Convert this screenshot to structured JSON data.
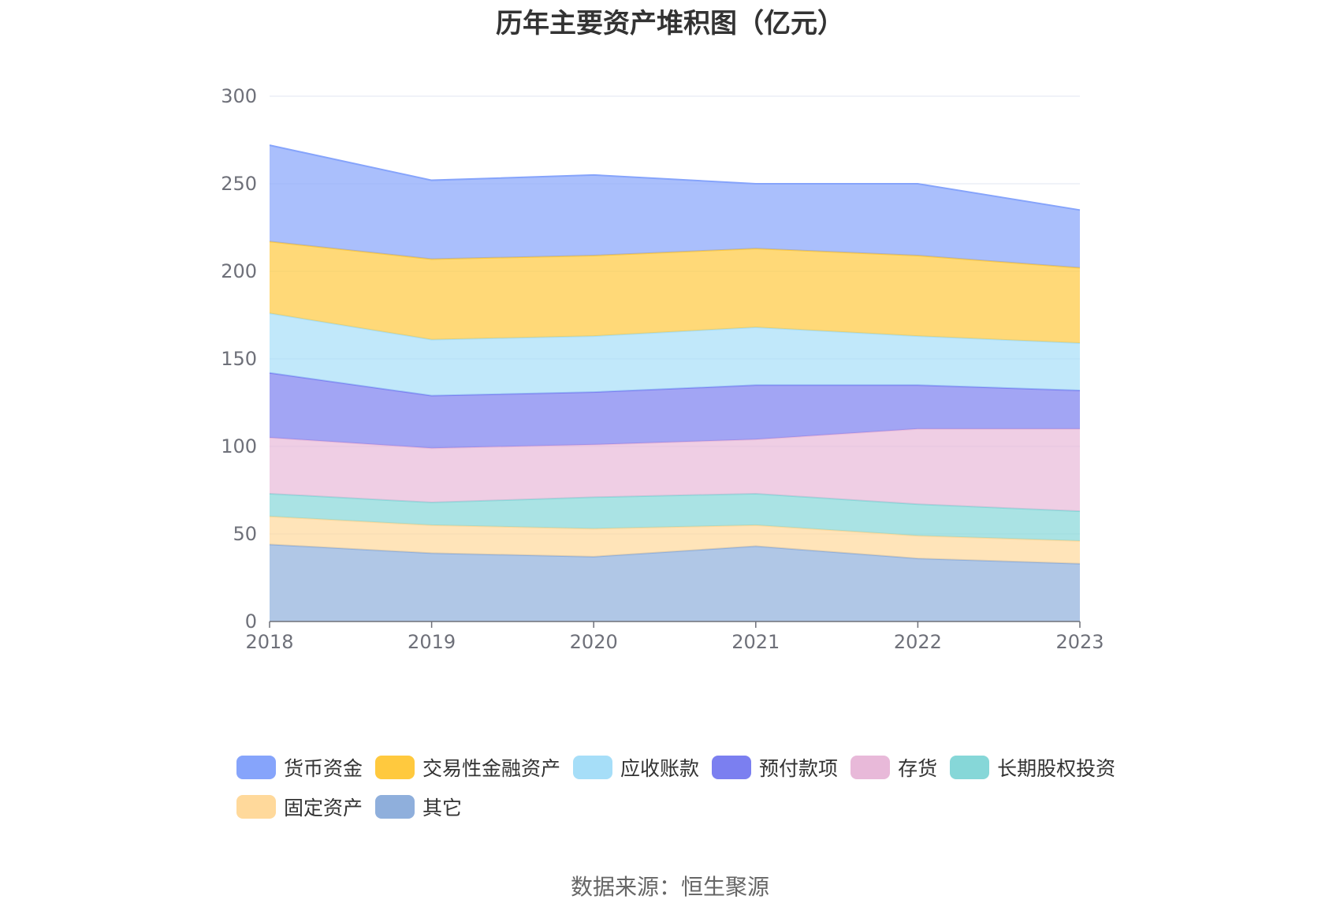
{
  "chart_data": {
    "type": "area",
    "stacked": true,
    "title": "历年主要资产堆积图（亿元）",
    "categories": [
      "2018",
      "2019",
      "2020",
      "2021",
      "2022",
      "2023"
    ],
    "ylim": [
      0,
      300
    ],
    "yticks": [
      0,
      50,
      100,
      150,
      200,
      250,
      300
    ],
    "grid": true,
    "legend_position": "bottom",
    "series": [
      {
        "name": "其它",
        "color": "#8fafdc",
        "values": [
          44,
          39,
          37,
          43,
          36,
          33
        ]
      },
      {
        "name": "固定资产",
        "color": "#ffd99b",
        "values": [
          16,
          16,
          16,
          12,
          13,
          13
        ]
      },
      {
        "name": "长期股权投资",
        "color": "#86d7d8",
        "values": [
          13,
          13,
          18,
          18,
          18,
          17
        ]
      },
      {
        "name": "存货",
        "color": "#e8b9d9",
        "values": [
          32,
          31,
          30,
          31,
          43,
          47
        ]
      },
      {
        "name": "预付款项",
        "color": "#7b7ff0",
        "values": [
          37,
          30,
          30,
          31,
          25,
          22
        ]
      },
      {
        "name": "应收账款",
        "color": "#a6def8",
        "values": [
          34,
          32,
          32,
          33,
          28,
          27
        ]
      },
      {
        "name": "交易性金融资产",
        "color": "#ffc93e",
        "values": [
          41,
          46,
          46,
          45,
          46,
          43
        ]
      },
      {
        "name": "货币资金",
        "color": "#86a4fb",
        "values": [
          55,
          45,
          46,
          37,
          41,
          33
        ]
      }
    ],
    "legend_order": [
      "货币资金",
      "交易性金融资产",
      "应收账款",
      "预付款项",
      "存货",
      "长期股权投资",
      "固定资产",
      "其它"
    ]
  },
  "source": "数据来源：恒生聚源"
}
